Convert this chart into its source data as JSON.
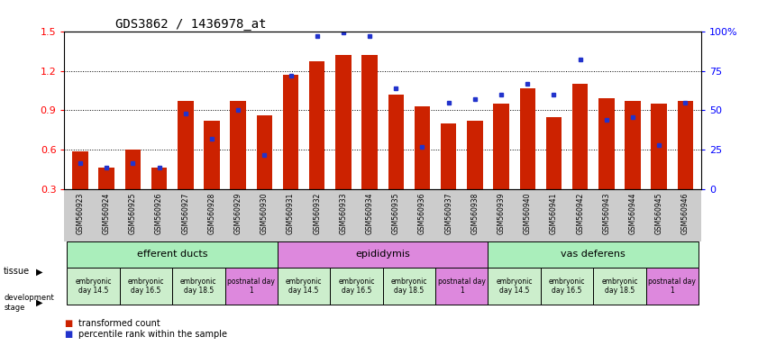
{
  "title": "GDS3862 / 1436978_at",
  "samples": [
    "GSM560923",
    "GSM560924",
    "GSM560925",
    "GSM560926",
    "GSM560927",
    "GSM560928",
    "GSM560929",
    "GSM560930",
    "GSM560931",
    "GSM560932",
    "GSM560933",
    "GSM560934",
    "GSM560935",
    "GSM560936",
    "GSM560937",
    "GSM560938",
    "GSM560939",
    "GSM560940",
    "GSM560941",
    "GSM560942",
    "GSM560943",
    "GSM560944",
    "GSM560945",
    "GSM560946"
  ],
  "transformed_count": [
    0.59,
    0.47,
    0.6,
    0.47,
    0.97,
    0.82,
    0.97,
    0.86,
    1.17,
    1.27,
    1.32,
    1.32,
    1.02,
    0.93,
    0.8,
    0.82,
    0.95,
    1.07,
    0.85,
    1.1,
    0.99,
    0.97,
    0.95,
    0.97
  ],
  "percentile_rank": [
    17,
    14,
    17,
    14,
    48,
    32,
    50,
    22,
    72,
    97,
    99,
    97,
    64,
    27,
    55,
    57,
    60,
    67,
    60,
    82,
    44,
    46,
    28,
    55
  ],
  "bar_color": "#cc2200",
  "dot_color": "#2233cc",
  "ylim_left": [
    0.3,
    1.5
  ],
  "ylim_right": [
    0,
    100
  ],
  "yticks_left": [
    0.3,
    0.6,
    0.9,
    1.2,
    1.5
  ],
  "yticks_right": [
    0,
    25,
    50,
    75,
    100
  ],
  "tissues": [
    {
      "label": "efferent ducts",
      "start": 0,
      "end": 8,
      "color": "#aaeebb"
    },
    {
      "label": "epididymis",
      "start": 8,
      "end": 16,
      "color": "#dd88dd"
    },
    {
      "label": "vas deferens",
      "start": 16,
      "end": 24,
      "color": "#aaeebb"
    }
  ],
  "dev_stage_groups": [
    {
      "label": "embryonic\nday 14.5",
      "start": 0,
      "end": 2,
      "color": "#cceecc"
    },
    {
      "label": "embryonic\nday 16.5",
      "start": 2,
      "end": 4,
      "color": "#cceecc"
    },
    {
      "label": "embryonic\nday 18.5",
      "start": 4,
      "end": 6,
      "color": "#cceecc"
    },
    {
      "label": "postnatal day\n1",
      "start": 6,
      "end": 8,
      "color": "#dd88dd"
    },
    {
      "label": "embryonic\nday 14.5",
      "start": 8,
      "end": 10,
      "color": "#cceecc"
    },
    {
      "label": "embryonic\nday 16.5",
      "start": 10,
      "end": 12,
      "color": "#cceecc"
    },
    {
      "label": "embryonic\nday 18.5",
      "start": 12,
      "end": 14,
      "color": "#cceecc"
    },
    {
      "label": "postnatal day\n1",
      "start": 14,
      "end": 16,
      "color": "#dd88dd"
    },
    {
      "label": "embryonic\nday 14.5",
      "start": 16,
      "end": 18,
      "color": "#cceecc"
    },
    {
      "label": "embryonic\nday 16.5",
      "start": 18,
      "end": 20,
      "color": "#cceecc"
    },
    {
      "label": "embryonic\nday 18.5",
      "start": 20,
      "end": 22,
      "color": "#cceecc"
    },
    {
      "label": "postnatal day\n1",
      "start": 22,
      "end": 24,
      "color": "#dd88dd"
    }
  ],
  "xtick_bg_color": "#cccccc",
  "background_color": "#ffffff"
}
